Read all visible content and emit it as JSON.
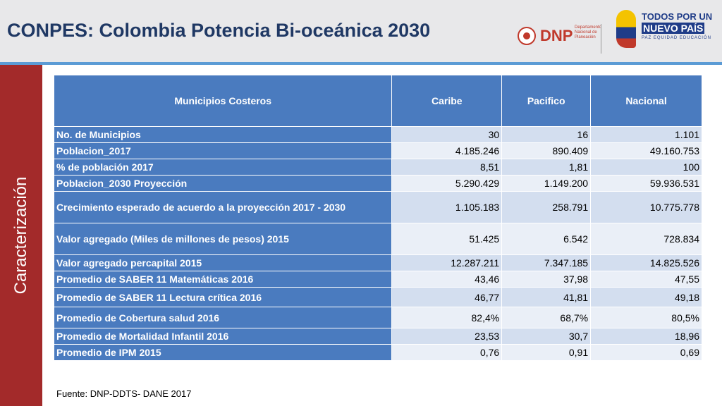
{
  "header": {
    "title": "CONPES: Colombia Potencia Bi-oceánica 2030",
    "dnp_logo": {
      "letters": "DNP",
      "subtitle": "Departamento Nacional de Planeación"
    },
    "gov_logo": {
      "line1": "TODOS POR UN",
      "line2": "NUEVO PAÍS",
      "line3": "PAZ  EQUIDAD  EDUCACIÓN"
    }
  },
  "sidebar": {
    "label": "Caracterización"
  },
  "table": {
    "headers": [
      "Municipios Costeros",
      "Caribe",
      "Pacifico",
      "Nacional"
    ],
    "rows": [
      {
        "label": "No. de Municipios",
        "caribe": "30",
        "pacifico": "16",
        "nacional": "1.101"
      },
      {
        "label": "Poblacion_2017",
        "caribe": "4.185.246",
        "pacifico": "890.409",
        "nacional": "49.160.753"
      },
      {
        "label": "% de población 2017",
        "caribe": "8,51",
        "pacifico": "1,81",
        "nacional": "100"
      },
      {
        "label": "Poblacion_2030 Proyección",
        "caribe": "5.290.429",
        "pacifico": "1.149.200",
        "nacional": "59.936.531"
      },
      {
        "label": "Crecimiento esperado de acuerdo a la proyección 2017 - 2030",
        "caribe": "1.105.183",
        "pacifico": "258.791",
        "nacional": "10.775.778"
      },
      {
        "label": "Valor agregado (Miles de millones de pesos) 2015",
        "caribe": "51.425",
        "pacifico": "6.542",
        "nacional": "728.834"
      },
      {
        "label": "Valor agregado percapital 2015",
        "caribe": "12.287.211",
        "pacifico": "7.347.185",
        "nacional": "14.825.526"
      },
      {
        "label": "Promedio de SABER 11 Matemáticas 2016",
        "caribe": "43,46",
        "pacifico": "37,98",
        "nacional": "47,55"
      },
      {
        "label": "Promedio de SABER 11 Lectura crítica 2016",
        "caribe": "46,77",
        "pacifico": "41,81",
        "nacional": "49,18"
      },
      {
        "label": "Promedio de Cobertura salud 2016",
        "caribe": "82,4%",
        "pacifico": "68,7%",
        "nacional": "80,5%"
      },
      {
        "label": "Promedio de Mortalidad Infantil 2016",
        "caribe": "23,53",
        "pacifico": "30,7",
        "nacional": "18,96"
      },
      {
        "label": "Promedio de IPM  2015",
        "caribe": "0,76",
        "pacifico": "0,91",
        "nacional": "0,69"
      }
    ]
  },
  "footer": {
    "source": "Fuente: DNP-DDTS- DANE 2017"
  }
}
